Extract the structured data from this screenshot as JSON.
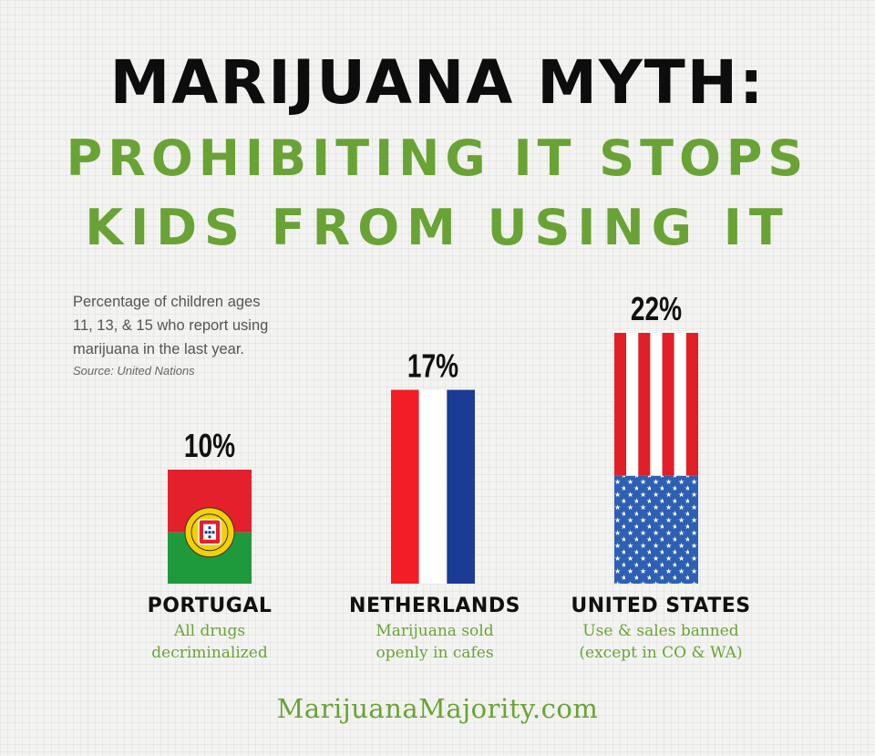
{
  "title": {
    "line1": "MARIJUANA MYTH:",
    "line2": "PROHIBITING IT STOPS",
    "line3": "KIDS FROM USING IT"
  },
  "note": {
    "text": "Percentage of children ages\n11, 13, & 15 who report using\nmarijuana in the last year.",
    "source": "Source: United Nations"
  },
  "countries": [
    {
      "name": "PORTUGAL",
      "desc1": "All drugs",
      "desc2": "decriminalized"
    },
    {
      "name": "NETHERLANDS",
      "desc1": "Marijuana sold",
      "desc2": "openly in cafes"
    },
    {
      "name": "UNITED STATES",
      "desc1": "Use & sales banned",
      "desc2": "(except in CO & WA)"
    }
  ],
  "chart_data": {
    "type": "bar",
    "categories": [
      "PORTUGAL",
      "NETHERLANDS",
      "UNITED STATES"
    ],
    "values": [
      10,
      17,
      22
    ],
    "data_labels": [
      "10%",
      "17%",
      "22%"
    ],
    "unit": "%",
    "bar_style": [
      "flag-portugal",
      "flag-netherlands",
      "flag-united-states"
    ],
    "ylim": [
      0,
      22
    ],
    "grid": false,
    "legend": "none"
  },
  "colors": {
    "green": "#6aa335",
    "portugal_red": "#e3202c",
    "portugal_green": "#1e9a3d",
    "netherlands_red": "#f21d25",
    "netherlands_blue": "#1b3b94",
    "us_red": "#e01f26",
    "us_blue": "#2d5fb3"
  },
  "footer": "MarijuanaMajority.com"
}
